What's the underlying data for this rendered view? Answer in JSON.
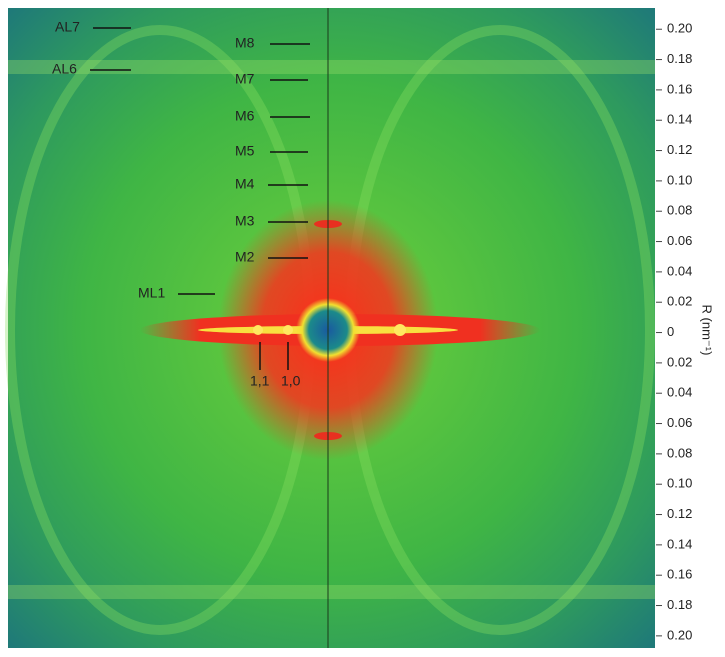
{
  "chart_data": {
    "type": "image",
    "annotations": [
      "AL7",
      "AL6",
      "M8",
      "M7",
      "M6",
      "M5",
      "M4",
      "M3",
      "M2",
      "ML1",
      "1,1",
      "1,0"
    ],
    "ylabel": "R (nm⁻¹)",
    "ylim": [
      -0.208,
      0.214
    ],
    "yticks": [
      {
        "value": 0.2,
        "label": "0.20"
      },
      {
        "value": 0.18,
        "label": "0.18"
      },
      {
        "value": 0.16,
        "label": "0.16"
      },
      {
        "value": 0.14,
        "label": "0.14"
      },
      {
        "value": 0.12,
        "label": "0.12"
      },
      {
        "value": 0.1,
        "label": "0.10"
      },
      {
        "value": 0.08,
        "label": "0.08"
      },
      {
        "value": 0.06,
        "label": "0.06"
      },
      {
        "value": 0.04,
        "label": "0.04"
      },
      {
        "value": 0.02,
        "label": "0.02"
      },
      0,
      {
        "value": -0.02,
        "label": "0.02"
      },
      {
        "value": -0.04,
        "label": "0.04"
      },
      {
        "value": -0.06,
        "label": "0.06"
      },
      {
        "value": -0.08,
        "label": "0.08"
      },
      {
        "value": -0.1,
        "label": "0.10"
      },
      {
        "value": -0.12,
        "label": "0.12"
      },
      {
        "value": -0.14,
        "label": "0.14"
      },
      {
        "value": -0.16,
        "label": "0.16"
      },
      {
        "value": -0.18,
        "label": "0.18"
      },
      {
        "value": -0.2,
        "label": "0.20"
      }
    ]
  }
}
